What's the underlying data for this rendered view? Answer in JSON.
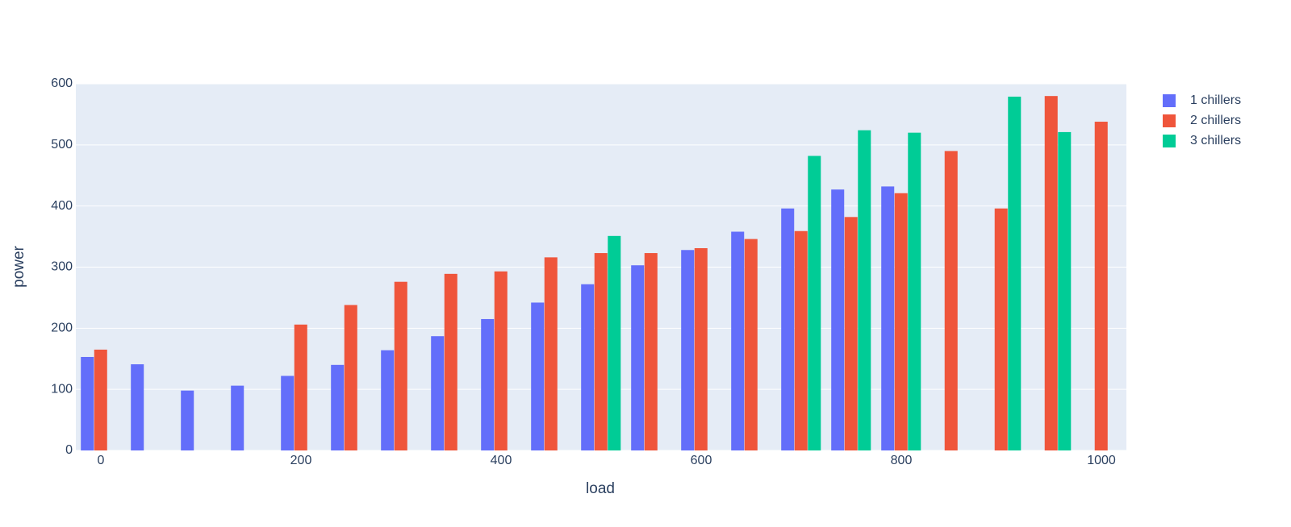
{
  "chart_data": {
    "type": "bar",
    "x_label": "load",
    "y_label": "power",
    "x": [
      0,
      50,
      100,
      150,
      200,
      250,
      300,
      350,
      400,
      450,
      500,
      550,
      600,
      650,
      700,
      750,
      800,
      850,
      900,
      950,
      1000
    ],
    "series": [
      {
        "name": "1 chillers",
        "color": "#636efa",
        "values": [
          153,
          141,
          98,
          106,
          122,
          140,
          164,
          187,
          215,
          242,
          272,
          303,
          328,
          358,
          396,
          427,
          432,
          null,
          null,
          null,
          null
        ]
      },
      {
        "name": "2 chillers",
        "color": "#ef553b",
        "values": [
          165,
          null,
          null,
          null,
          206,
          238,
          276,
          289,
          293,
          316,
          323,
          323,
          331,
          346,
          359,
          382,
          421,
          490,
          396,
          580,
          538
        ]
      },
      {
        "name": "3 chillers",
        "color": "#00cc96",
        "values": [
          null,
          null,
          null,
          null,
          null,
          null,
          null,
          null,
          null,
          null,
          351,
          null,
          null,
          null,
          482,
          524,
          520,
          null,
          579,
          521,
          null
        ]
      }
    ],
    "xlim": [
      -25,
      1025
    ],
    "xticks": [
      0,
      200,
      400,
      600,
      800,
      1000
    ],
    "ylim": [
      0,
      600
    ],
    "yticks": [
      0,
      100,
      200,
      300,
      400,
      500,
      600
    ],
    "grid": true,
    "legend": "right"
  }
}
